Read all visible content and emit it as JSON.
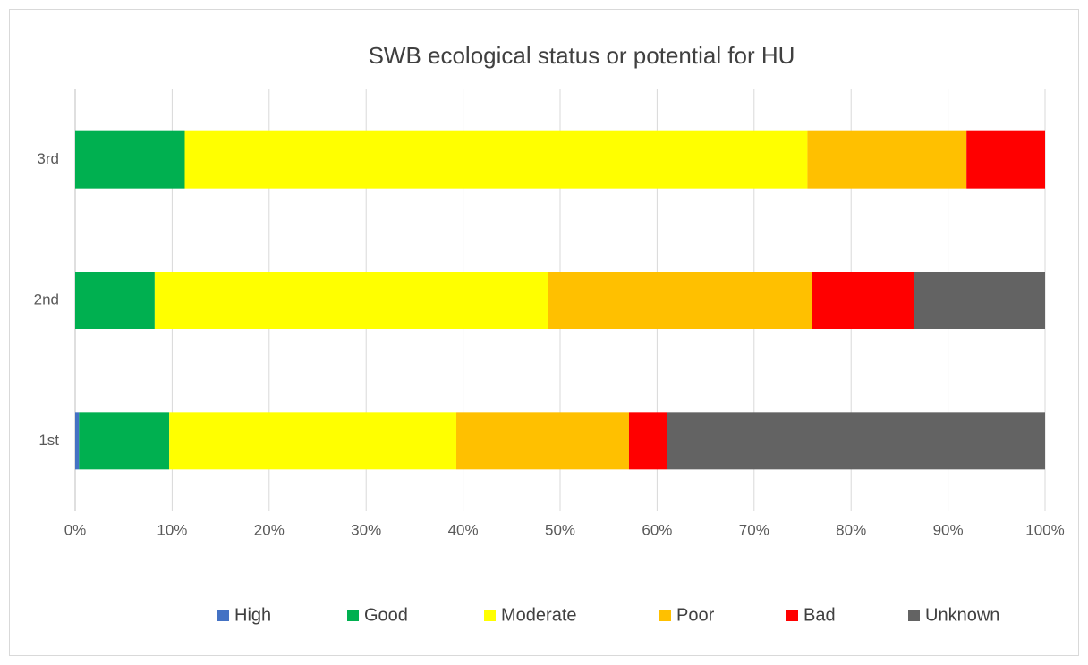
{
  "chart_data": {
    "type": "stacked-barh",
    "title": "SWB ecological status or potential for HU",
    "categories": [
      "1st",
      "2nd",
      "3rd"
    ],
    "series": [
      {
        "name": "High",
        "color": "#4472c4",
        "values": [
          0.4,
          0,
          0
        ]
      },
      {
        "name": "Good",
        "color": "#00b050",
        "values": [
          9.3,
          8.2,
          11.3
        ]
      },
      {
        "name": "Moderate",
        "color": "#ffff00",
        "values": [
          29.6,
          40.6,
          64.2
        ]
      },
      {
        "name": "Poor",
        "color": "#ffc000",
        "values": [
          17.8,
          27.2,
          16.4
        ]
      },
      {
        "name": "Bad",
        "color": "#ff0000",
        "values": [
          3.9,
          10.5,
          8.1
        ]
      },
      {
        "name": "Unknown",
        "color": "#636363",
        "values": [
          39.0,
          13.5,
          0
        ]
      }
    ],
    "xlim": [
      0,
      100
    ],
    "xticks": [
      {
        "value": 0,
        "label": "0%"
      },
      {
        "value": 10,
        "label": "10%"
      },
      {
        "value": 20,
        "label": "20%"
      },
      {
        "value": 30,
        "label": "30%"
      },
      {
        "value": 40,
        "label": "40%"
      },
      {
        "value": 50,
        "label": "50%"
      },
      {
        "value": 60,
        "label": "60%"
      },
      {
        "value": 70,
        "label": "70%"
      },
      {
        "value": 80,
        "label": "80%"
      },
      {
        "value": 90,
        "label": "90%"
      },
      {
        "value": 100,
        "label": "100%"
      }
    ],
    "grid": true,
    "legend": "bottom"
  }
}
